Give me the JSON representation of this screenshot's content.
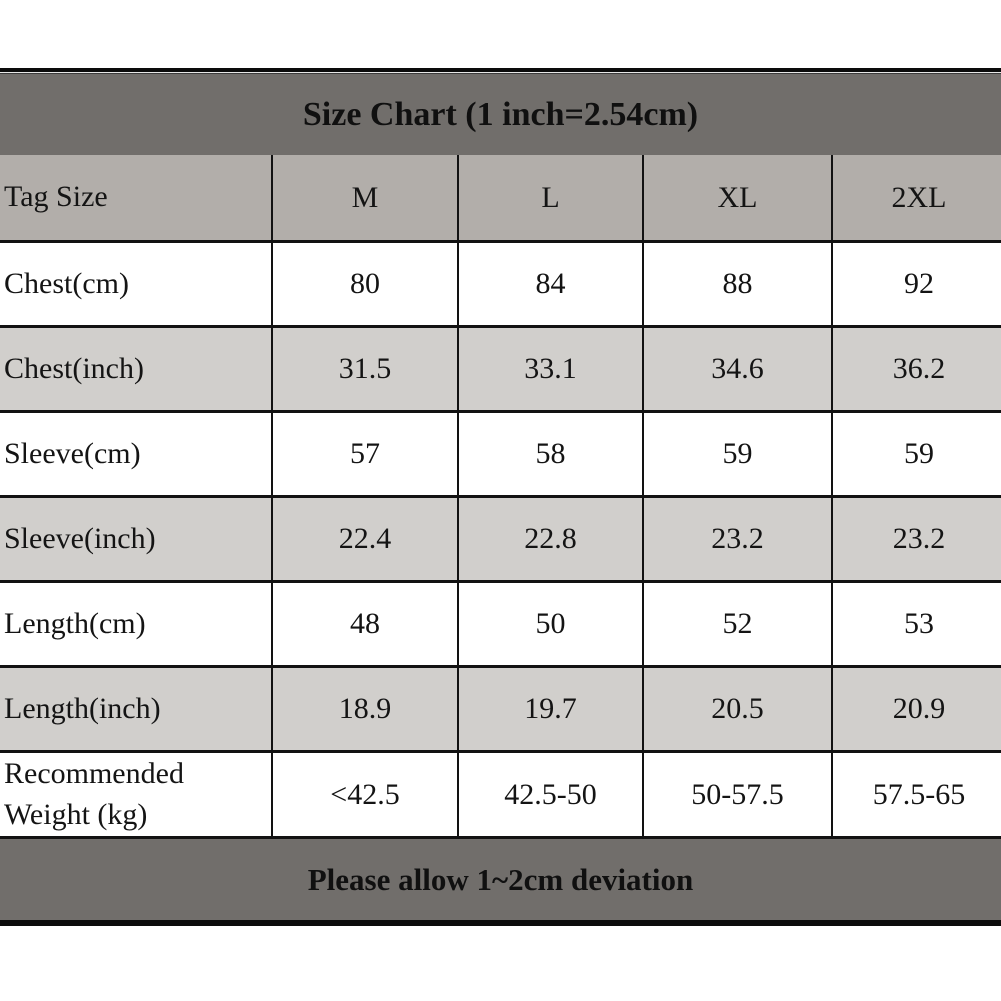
{
  "chart_data": {
    "type": "table",
    "title": "Size Chart (1 inch=2.54cm)",
    "note": "Please allow 1~2cm deviation",
    "columns": [
      "Tag Size",
      "M",
      "L",
      "XL",
      "2XL"
    ],
    "rows": [
      [
        "Chest(cm)",
        "80",
        "84",
        "88",
        "92"
      ],
      [
        "Chest(inch)",
        "31.5",
        "33.1",
        "34.6",
        "36.2"
      ],
      [
        "Sleeve(cm)",
        "57",
        "58",
        "59",
        "59"
      ],
      [
        "Sleeve(inch)",
        "22.4",
        "22.8",
        "23.2",
        "23.2"
      ],
      [
        "Length(cm)",
        "48",
        "50",
        "52",
        "53"
      ],
      [
        "Length(inch)",
        "18.9",
        "19.7",
        "20.5",
        "20.9"
      ],
      [
        "Recommended Weight (kg)",
        "<42.5",
        "42.5-50",
        "50-57.5",
        "57.5-65"
      ]
    ]
  },
  "colors": {
    "bar_background": "#716e6b",
    "tag_row_background": "#b2aeaa",
    "alt_row_background": "#d1cfcc",
    "white_row_background": "#ffffff",
    "grid_line": "#121212",
    "text": "#141414"
  }
}
